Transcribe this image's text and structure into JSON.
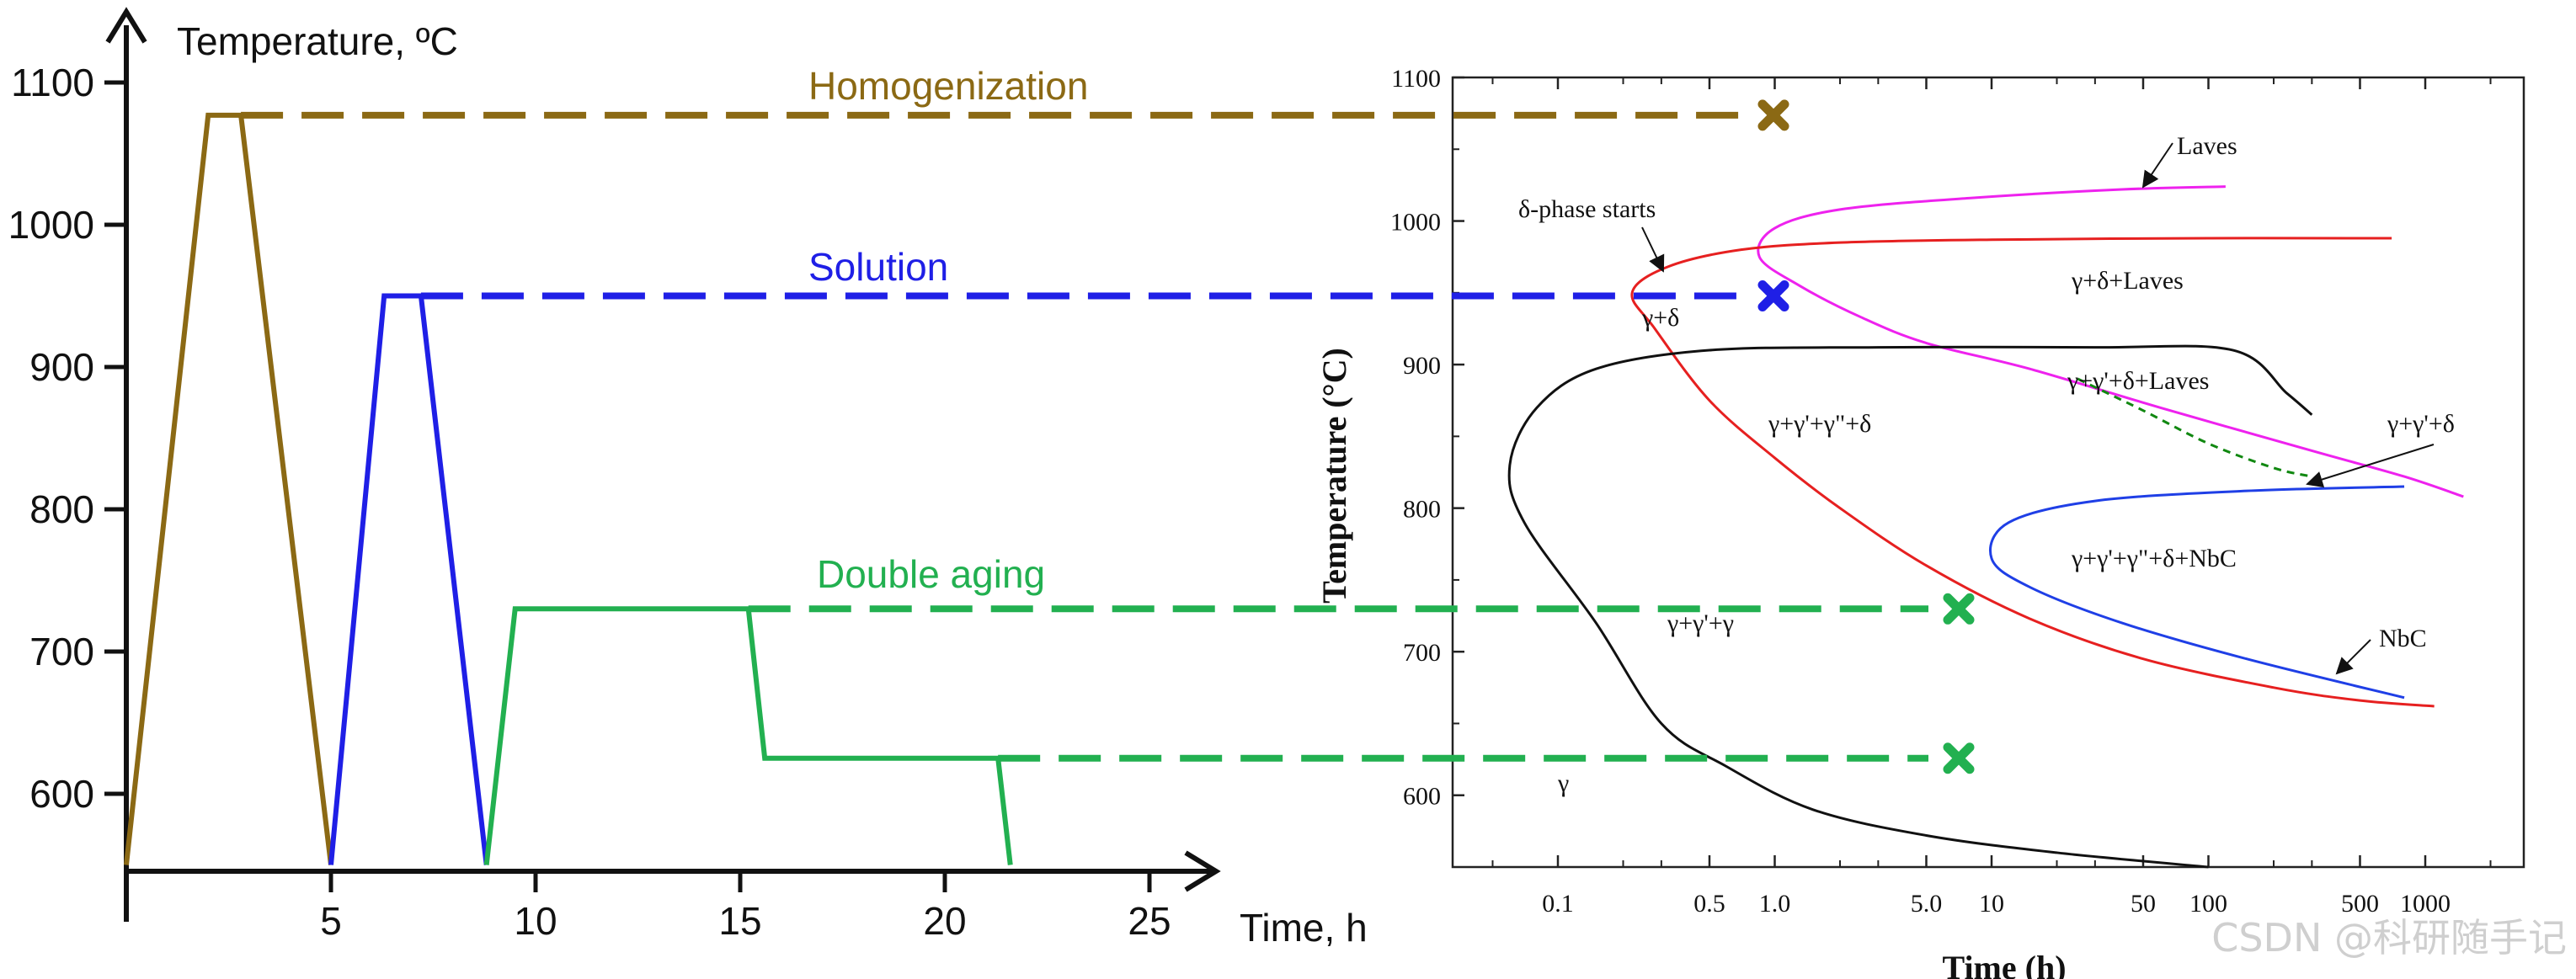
{
  "chart_data": [
    {
      "type": "line",
      "title": "",
      "ylabel": "Temperature, ºC",
      "xlabel": "Time, h",
      "xlim": [
        0,
        27
      ],
      "ylim": [
        545,
        1110
      ],
      "x_ticks": [
        5,
        10,
        15,
        20,
        25
      ],
      "y_ticks": [
        600,
        700,
        800,
        900,
        1000,
        1100
      ],
      "series": [
        {
          "name": "Homogenization",
          "color": "#8B6914",
          "points": [
            [
              0,
              550
            ],
            [
              2,
              1077
            ],
            [
              2.8,
              1077
            ],
            [
              5,
              550
            ]
          ],
          "hold_line": [
            [
              2.8,
              1077
            ],
            [
              40.5,
              1077
            ]
          ],
          "end_marker": "x"
        },
        {
          "name": "Solution",
          "color": "#1f1fe6",
          "points": [
            [
              5,
              550
            ],
            [
              6.3,
              950
            ],
            [
              7.2,
              950
            ],
            [
              8.8,
              550
            ]
          ],
          "hold_line": [
            [
              7.2,
              950
            ],
            [
              40.5,
              950
            ]
          ],
          "end_marker": "x"
        },
        {
          "name": "Double aging",
          "color": "#22b050",
          "points": [
            [
              8.8,
              550
            ],
            [
              9.5,
              730
            ],
            [
              15.2,
              730
            ],
            [
              15.6,
              625
            ],
            [
              21.3,
              625
            ],
            [
              21.6,
              550
            ]
          ],
          "hold_lines": [
            [
              [
                15.2,
                730
              ],
              [
                45.5,
                730
              ]
            ],
            [
              [
                21.3,
                625
              ],
              [
                45.5,
                625
              ]
            ]
          ],
          "end_marker": "x"
        }
      ]
    },
    {
      "type": "line",
      "title": "",
      "xscale": "log",
      "xlabel": "Time (h)",
      "ylabel": "Temperature (°C)",
      "xlim": [
        0.03,
        2000
      ],
      "ylim": [
        550,
        1100
      ],
      "x_tick_labels": [
        "0.1",
        "0.5",
        "1.0",
        "5.0",
        "10",
        "50",
        "100",
        "500",
        "1000"
      ],
      "x_tick_values": [
        0.1,
        0.5,
        1.0,
        5.0,
        10,
        50,
        100,
        500,
        1000
      ],
      "y_ticks": [
        600,
        700,
        800,
        900,
        1000,
        1100
      ],
      "series": [
        {
          "name": "Laves",
          "color": "#ee22ee",
          "points": [
            [
              1500,
              808
            ],
            [
              800,
              822
            ],
            [
              300,
              840
            ],
            [
              60,
              870
            ],
            [
              15,
              897
            ],
            [
              5,
              915
            ],
            [
              2.5,
              933
            ],
            [
              1.3,
              955
            ],
            [
              0.85,
              975
            ],
            [
              1.0,
              995
            ],
            [
              2.0,
              1008
            ],
            [
              8,
              1016
            ],
            [
              40,
              1022
            ],
            [
              120,
              1024
            ]
          ]
        },
        {
          "name": "δ-phase starts",
          "color": "#e62020",
          "points": [
            [
              1100,
              662
            ],
            [
              500,
              666
            ],
            [
              200,
              675
            ],
            [
              50,
              695
            ],
            [
              15,
              723
            ],
            [
              5,
              760
            ],
            [
              2,
              800
            ],
            [
              1.0,
              835
            ],
            [
              0.5,
              875
            ],
            [
              0.28,
              925
            ],
            [
              0.22,
              950
            ],
            [
              0.32,
              968
            ],
            [
              0.7,
              980
            ],
            [
              2,
              985
            ],
            [
              10,
              987
            ],
            [
              100,
              988
            ],
            [
              700,
              988
            ]
          ]
        },
        {
          "name": "NbC",
          "color": "#1f3fe6",
          "points": [
            [
              800,
              668
            ],
            [
              150,
              695
            ],
            [
              40,
              720
            ],
            [
              15,
              745
            ],
            [
              10,
              765
            ],
            [
              12,
              790
            ],
            [
              30,
              805
            ],
            [
              150,
              812
            ],
            [
              800,
              815
            ]
          ]
        },
        {
          "name": "γ",
          "color": "#111111",
          "points": [
            [
              100,
              550
            ],
            [
              20,
              560
            ],
            [
              5,
              572
            ],
            [
              1.5,
              590
            ],
            [
              0.6,
              620
            ],
            [
              0.3,
              650
            ],
            [
              0.15,
              720
            ],
            [
              0.07,
              790
            ],
            [
              0.06,
              830
            ],
            [
              0.08,
              870
            ],
            [
              0.15,
              897
            ],
            [
              0.5,
              910
            ],
            [
              3,
              912
            ],
            [
              30,
              912
            ],
            [
              130,
              910
            ],
            [
              230,
              880
            ],
            [
              300,
              865
            ]
          ]
        },
        {
          "name": "γ+γ'+δ+Laves boundary",
          "color": "#118811",
          "style": "dashed",
          "points": [
            [
              25,
              890
            ],
            [
              50,
              868
            ],
            [
              100,
              845
            ],
            [
              200,
              828
            ],
            [
              300,
              822
            ]
          ]
        }
      ],
      "annotations": [
        "Laves",
        "δ-phase starts",
        "γ+δ+Laves",
        "γ+δ",
        "γ+γ'+δ+Laves",
        "γ+γ'+γ\"+δ",
        "γ+γ'+δ",
        "γ+γ'+γ\"+δ+NbC",
        "γ+γ'+γ",
        "NbC",
        "γ"
      ]
    }
  ],
  "labels": {
    "homogenization": "Homogenization",
    "solution": "Solution",
    "double_aging": "Double aging"
  },
  "watermark": "CSDN @科研随手记"
}
